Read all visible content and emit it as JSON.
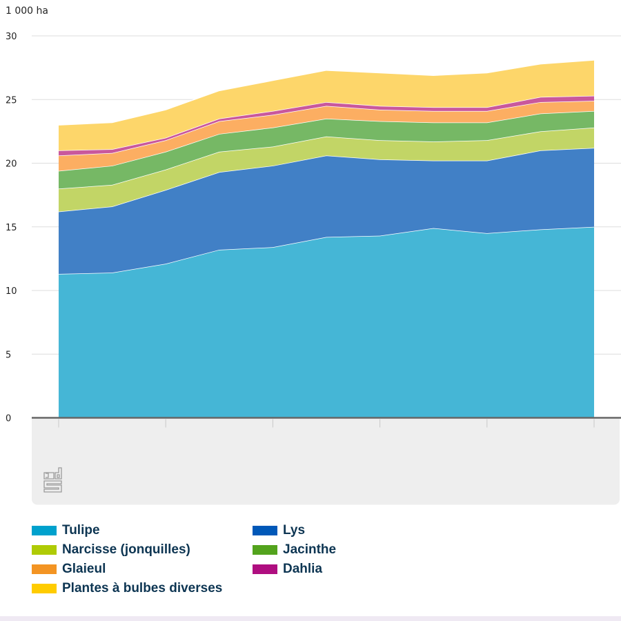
{
  "chart_data": {
    "type": "area",
    "stacked": true,
    "title": "",
    "unit_label": "1 000 ha",
    "xlabel": "",
    "ylabel": "1 000 ha",
    "ylim": [
      0,
      30
    ],
    "yticks": [
      0,
      5,
      10,
      15,
      20,
      25,
      30
    ],
    "x": [
      1,
      2,
      3,
      4,
      5,
      6,
      7,
      8,
      9,
      10,
      11
    ],
    "x_tick_labels_visible": false,
    "grid": true,
    "legend_position": "bottom",
    "series": [
      {
        "name": "Tulipe",
        "color": "#45b6d6",
        "legend_color": "#00a1cd",
        "values": [
          11.3,
          11.4,
          12.1,
          13.2,
          13.4,
          14.2,
          14.3,
          14.9,
          14.5,
          14.8,
          15.0
        ]
      },
      {
        "name": "Lys",
        "color": "#4180c6",
        "legend_color": "#0058b8",
        "values": [
          4.9,
          5.2,
          5.8,
          6.1,
          6.4,
          6.4,
          6.0,
          5.3,
          5.7,
          6.2,
          6.2
        ]
      },
      {
        "name": "Narcisse (jonquilles)",
        "color": "#c2d566",
        "legend_color": "#afcb05",
        "values": [
          1.8,
          1.7,
          1.6,
          1.6,
          1.5,
          1.5,
          1.5,
          1.5,
          1.6,
          1.5,
          1.6
        ]
      },
      {
        "name": "Jacinthe",
        "color": "#76b865",
        "legend_color": "#53a31d",
        "values": [
          1.4,
          1.5,
          1.4,
          1.4,
          1.5,
          1.4,
          1.5,
          1.5,
          1.4,
          1.4,
          1.3
        ]
      },
      {
        "name": "Glaieul",
        "color": "#fcae62",
        "legend_color": "#f39423",
        "values": [
          1.2,
          1.0,
          0.9,
          1.0,
          1.0,
          1.0,
          0.9,
          0.9,
          0.9,
          0.9,
          0.8
        ]
      },
      {
        "name": "Dahlia",
        "color": "#c9589c",
        "legend_color": "#af0e80",
        "values": [
          0.4,
          0.3,
          0.2,
          0.2,
          0.3,
          0.3,
          0.3,
          0.3,
          0.3,
          0.4,
          0.4
        ]
      },
      {
        "name": "Plantes à bulbes diverses",
        "color": "#fdd66a",
        "legend_color": "#ffcc00",
        "values": [
          2.0,
          2.1,
          2.2,
          2.2,
          2.4,
          2.5,
          2.6,
          2.5,
          2.7,
          2.6,
          2.8
        ]
      }
    ]
  },
  "legend": {
    "left": [
      "Tulipe",
      "Narcisse (jonquilles)",
      "Glaieul",
      "Plantes à bulbes diverses"
    ],
    "right": [
      "Lys",
      "Jacinthe",
      "Dahlia"
    ]
  },
  "logo": {
    "name": "cbs-logo"
  }
}
